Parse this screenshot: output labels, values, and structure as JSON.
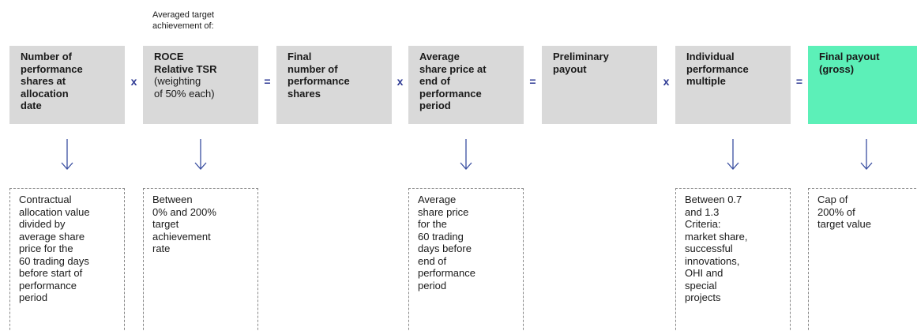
{
  "top_note": [
    "Averaged target",
    "achievement of:"
  ],
  "boxes": [
    {
      "bold_lines": [
        "Number of",
        "performance",
        "shares at",
        "allocation",
        "date"
      ],
      "lines": []
    },
    {
      "bold_lines": [
        "ROCE",
        "Relative TSR"
      ],
      "lines": [
        "(weighting",
        "of 50% each)"
      ]
    },
    {
      "bold_lines": [
        "Final",
        "number of",
        "performance",
        "shares"
      ],
      "lines": []
    },
    {
      "bold_lines": [
        "Average",
        "share price at",
        "end of",
        "performance",
        "period"
      ],
      "lines": []
    },
    {
      "bold_lines": [
        "Preliminary",
        "payout"
      ],
      "lines": []
    },
    {
      "bold_lines": [
        "Individual",
        "performance",
        "multiple"
      ],
      "lines": []
    },
    {
      "bold_lines": [
        "Final payout",
        "(gross)"
      ],
      "lines": []
    }
  ],
  "operators": [
    "x",
    "=",
    "x",
    "=",
    "x",
    "="
  ],
  "notes": [
    {
      "box": 0,
      "lines": [
        "Contractual",
        "allocation value",
        "divided by",
        "average share",
        "price for the",
        "60 trading days",
        "before start of",
        "performance",
        "period"
      ]
    },
    {
      "box": 1,
      "lines": [
        "Between",
        "0% and 200%",
        "target",
        "achievement",
        "rate"
      ]
    },
    {
      "box": 3,
      "lines": [
        "Average",
        "share price",
        "for the",
        "60 trading",
        "days before",
        "end of",
        "performance",
        "period"
      ]
    },
    {
      "box": 5,
      "lines": [
        "Between 0.7",
        "and 1.3",
        "Criteria:",
        "market share,",
        "successful",
        "innovations,",
        "OHI and",
        "special",
        "projects"
      ]
    },
    {
      "box": 6,
      "lines": [
        "Cap of",
        "200% of",
        "target value"
      ]
    }
  ]
}
